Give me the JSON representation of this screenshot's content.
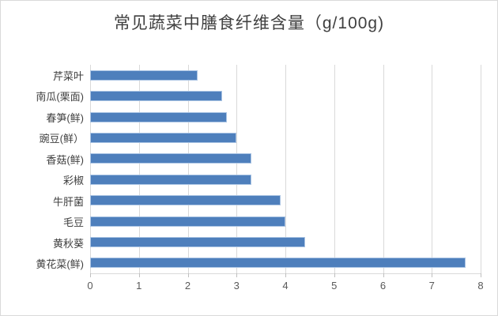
{
  "title": "常见蔬菜中膳食纤维含量（g/100g)",
  "chart_data": {
    "type": "bar",
    "orientation": "horizontal",
    "title": "常见蔬菜中膳食纤维含量（g/100g)",
    "categories": [
      "芹菜叶",
      "南瓜(栗面)",
      "春笋(鲜)",
      "豌豆(鲜）",
      "香菇(鲜)",
      "彩椒",
      "牛肝菌",
      "毛豆",
      "黄秋葵",
      "黄花菜(鲜)"
    ],
    "values": [
      2.2,
      2.7,
      2.8,
      3.0,
      3.3,
      3.3,
      3.9,
      4.0,
      4.4,
      7.7
    ],
    "xlabel": "",
    "ylabel": "",
    "xlim": [
      0,
      8
    ],
    "xticks": [
      0,
      1,
      2,
      3,
      4,
      5,
      6,
      7,
      8
    ],
    "grid": "vertical-gridlines",
    "legend": "none",
    "colors": {
      "bar": "#4e7fbc",
      "bar_border": "#a9c3e3",
      "gridline": "#d9d9d9",
      "axis_tick": "#bfbfbf",
      "title_text": "#404040",
      "category_text": "#404040",
      "tick_text": "#595959",
      "chart_border": "#d9d9d9",
      "background": "#ffffff"
    }
  }
}
